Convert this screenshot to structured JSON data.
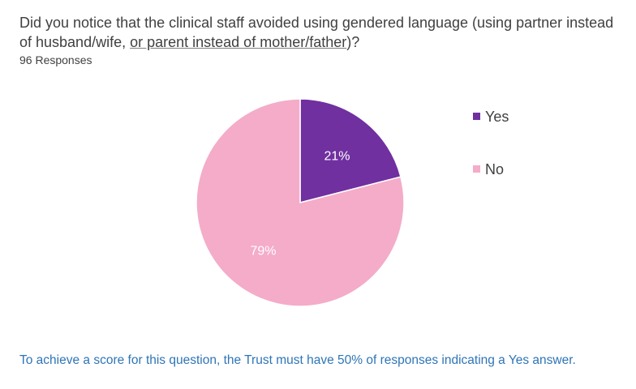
{
  "question": {
    "part1": "Did you notice that the clinical staff avoided using gendered language (using partner instead of husband/wife, ",
    "part2_underlined": "or parent instead of mother/father",
    "part3": ")?"
  },
  "responses_label": "96 Responses",
  "footnote": "To achieve a score for this question, the Trust must have 50% of responses indicating a Yes answer.",
  "chart_data": {
    "type": "pie",
    "title": "",
    "slices": [
      {
        "label": "Yes",
        "value": 21,
        "display": "21%",
        "color": "#7030a0"
      },
      {
        "label": "No",
        "value": 79,
        "display": "79%",
        "color": "#f4acc8"
      }
    ],
    "start": "12 o'clock, clockwise",
    "legend": {
      "placement": "right",
      "entries": [
        "Yes",
        "No"
      ]
    }
  }
}
